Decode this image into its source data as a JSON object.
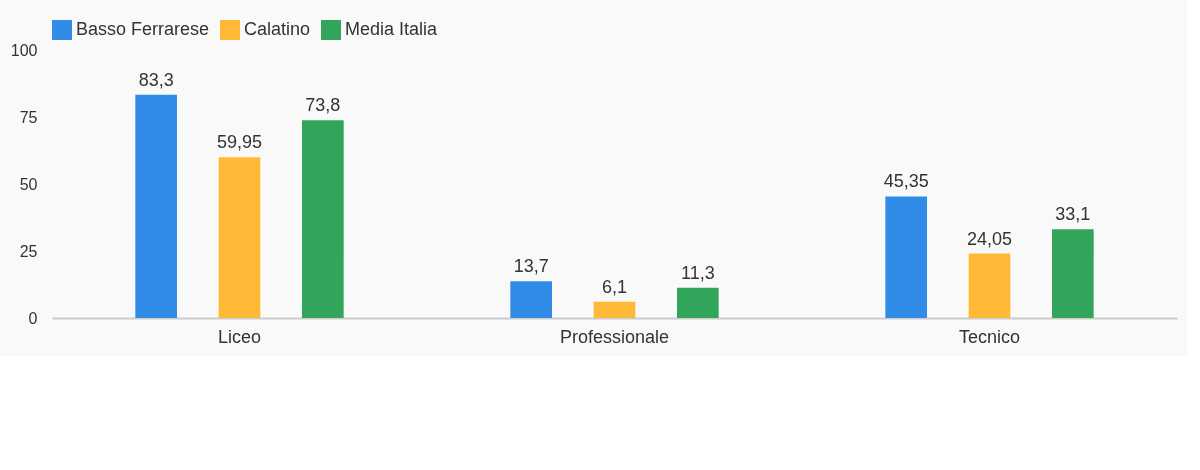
{
  "chart_data": {
    "type": "bar",
    "categories": [
      "Liceo",
      "Professionale",
      "Tecnico"
    ],
    "series": [
      {
        "name": "Basso Ferrarese",
        "color": "#318ce7",
        "values": [
          83.3,
          13.7,
          45.35
        ],
        "value_labels": [
          "83,3",
          "13,7",
          "45,35"
        ]
      },
      {
        "name": "Calatino",
        "color": "#ffb937",
        "values": [
          59.95,
          6.1,
          24.05
        ],
        "value_labels": [
          "59,95",
          "6,1",
          "24,05"
        ]
      },
      {
        "name": "Media Italia",
        "color": "#31a65a",
        "values": [
          73.8,
          11.3,
          33.1
        ],
        "value_labels": [
          "73,8",
          "11,3",
          "33,1"
        ]
      }
    ],
    "ylim": [
      0,
      100
    ],
    "yticks": [
      0,
      25,
      50,
      75,
      100
    ],
    "grid": false,
    "legend": "top left"
  }
}
